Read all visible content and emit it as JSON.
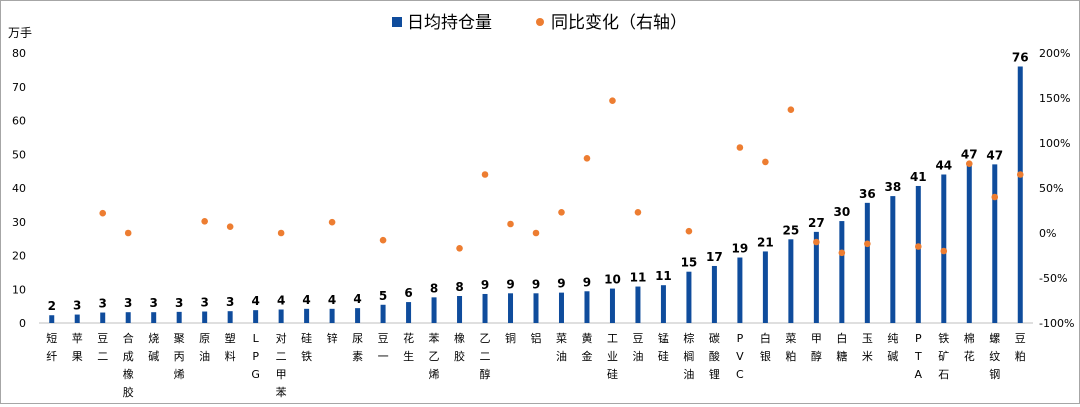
{
  "chart_data": {
    "type": "bar",
    "title": "",
    "ylabel": "万手",
    "legend": {
      "position": "top-center",
      "bar_label": "日均持仓量",
      "dot_label": "同比变化（右轴）"
    },
    "ylim": [
      0,
      80
    ],
    "yticks": [
      "0",
      "10",
      "20",
      "30",
      "40",
      "50",
      "60",
      "70",
      "80"
    ],
    "y2lim": [
      -100,
      200
    ],
    "y2ticks": [
      "-100%",
      "-50%",
      "0%",
      "50%",
      "100%",
      "150%",
      "200%"
    ],
    "colors": {
      "bar": "#0f4c9c",
      "dot": "#ed7d31",
      "axis": "#bfbfbf"
    },
    "categories": [
      "短纤",
      "苹果",
      "豆二",
      "合成橡胶",
      "烧碱",
      "聚丙烯",
      "原油",
      "塑料",
      "LPG",
      "对二甲苯",
      "硅铁",
      "锌",
      "尿素",
      "豆一",
      "花生",
      "苯乙烯",
      "橡胶",
      "乙二醇",
      "铜",
      "铝",
      "菜油",
      "黄金",
      "工业硅",
      "豆油",
      "锰硅",
      "棕榈油",
      "碳酸锂",
      "PVC",
      "白银",
      "菜粕",
      "甲醇",
      "白糖",
      "玉米",
      "纯碱",
      "PTA",
      "铁矿石",
      "棉花",
      "螺纹钢",
      "豆粕"
    ],
    "series": [
      {
        "name": "日均持仓量",
        "values": [
          2.3,
          2.5,
          3.1,
          3.2,
          3.2,
          3.3,
          3.4,
          3.5,
          3.8,
          4.0,
          4.2,
          4.2,
          4.4,
          5.4,
          6.2,
          7.6,
          8.0,
          8.6,
          8.8,
          8.8,
          9.0,
          9.4,
          10.2,
          10.8,
          11.2,
          15.2,
          16.9,
          19.4,
          21.2,
          24.8,
          27.0,
          30.2,
          35.6,
          37.6,
          40.6,
          44.0,
          47.2,
          47.0,
          76.0
        ],
        "labels": [
          "2",
          "3",
          "3",
          "3",
          "3",
          "3",
          "3",
          "3",
          "4",
          "4",
          "4",
          "4",
          "4",
          "5",
          "6",
          "8",
          "8",
          "9",
          "9",
          "9",
          "9",
          "9",
          "10",
          "11",
          "11",
          "15",
          "17",
          "19",
          "21",
          "25",
          "27",
          "30",
          "36",
          "38",
          "41",
          "44",
          "47",
          "47",
          "76"
        ]
      },
      {
        "name": "同比变化（右轴）",
        "axis": "right",
        "values": [
          null,
          null,
          22,
          0,
          null,
          null,
          13,
          7,
          null,
          0,
          null,
          12,
          null,
          -8,
          null,
          null,
          -17,
          65,
          10,
          0,
          23,
          83,
          147,
          23,
          null,
          2,
          null,
          95,
          79,
          137,
          -10,
          -22,
          -12,
          null,
          -15,
          -20,
          77,
          40,
          65
        ]
      }
    ]
  }
}
